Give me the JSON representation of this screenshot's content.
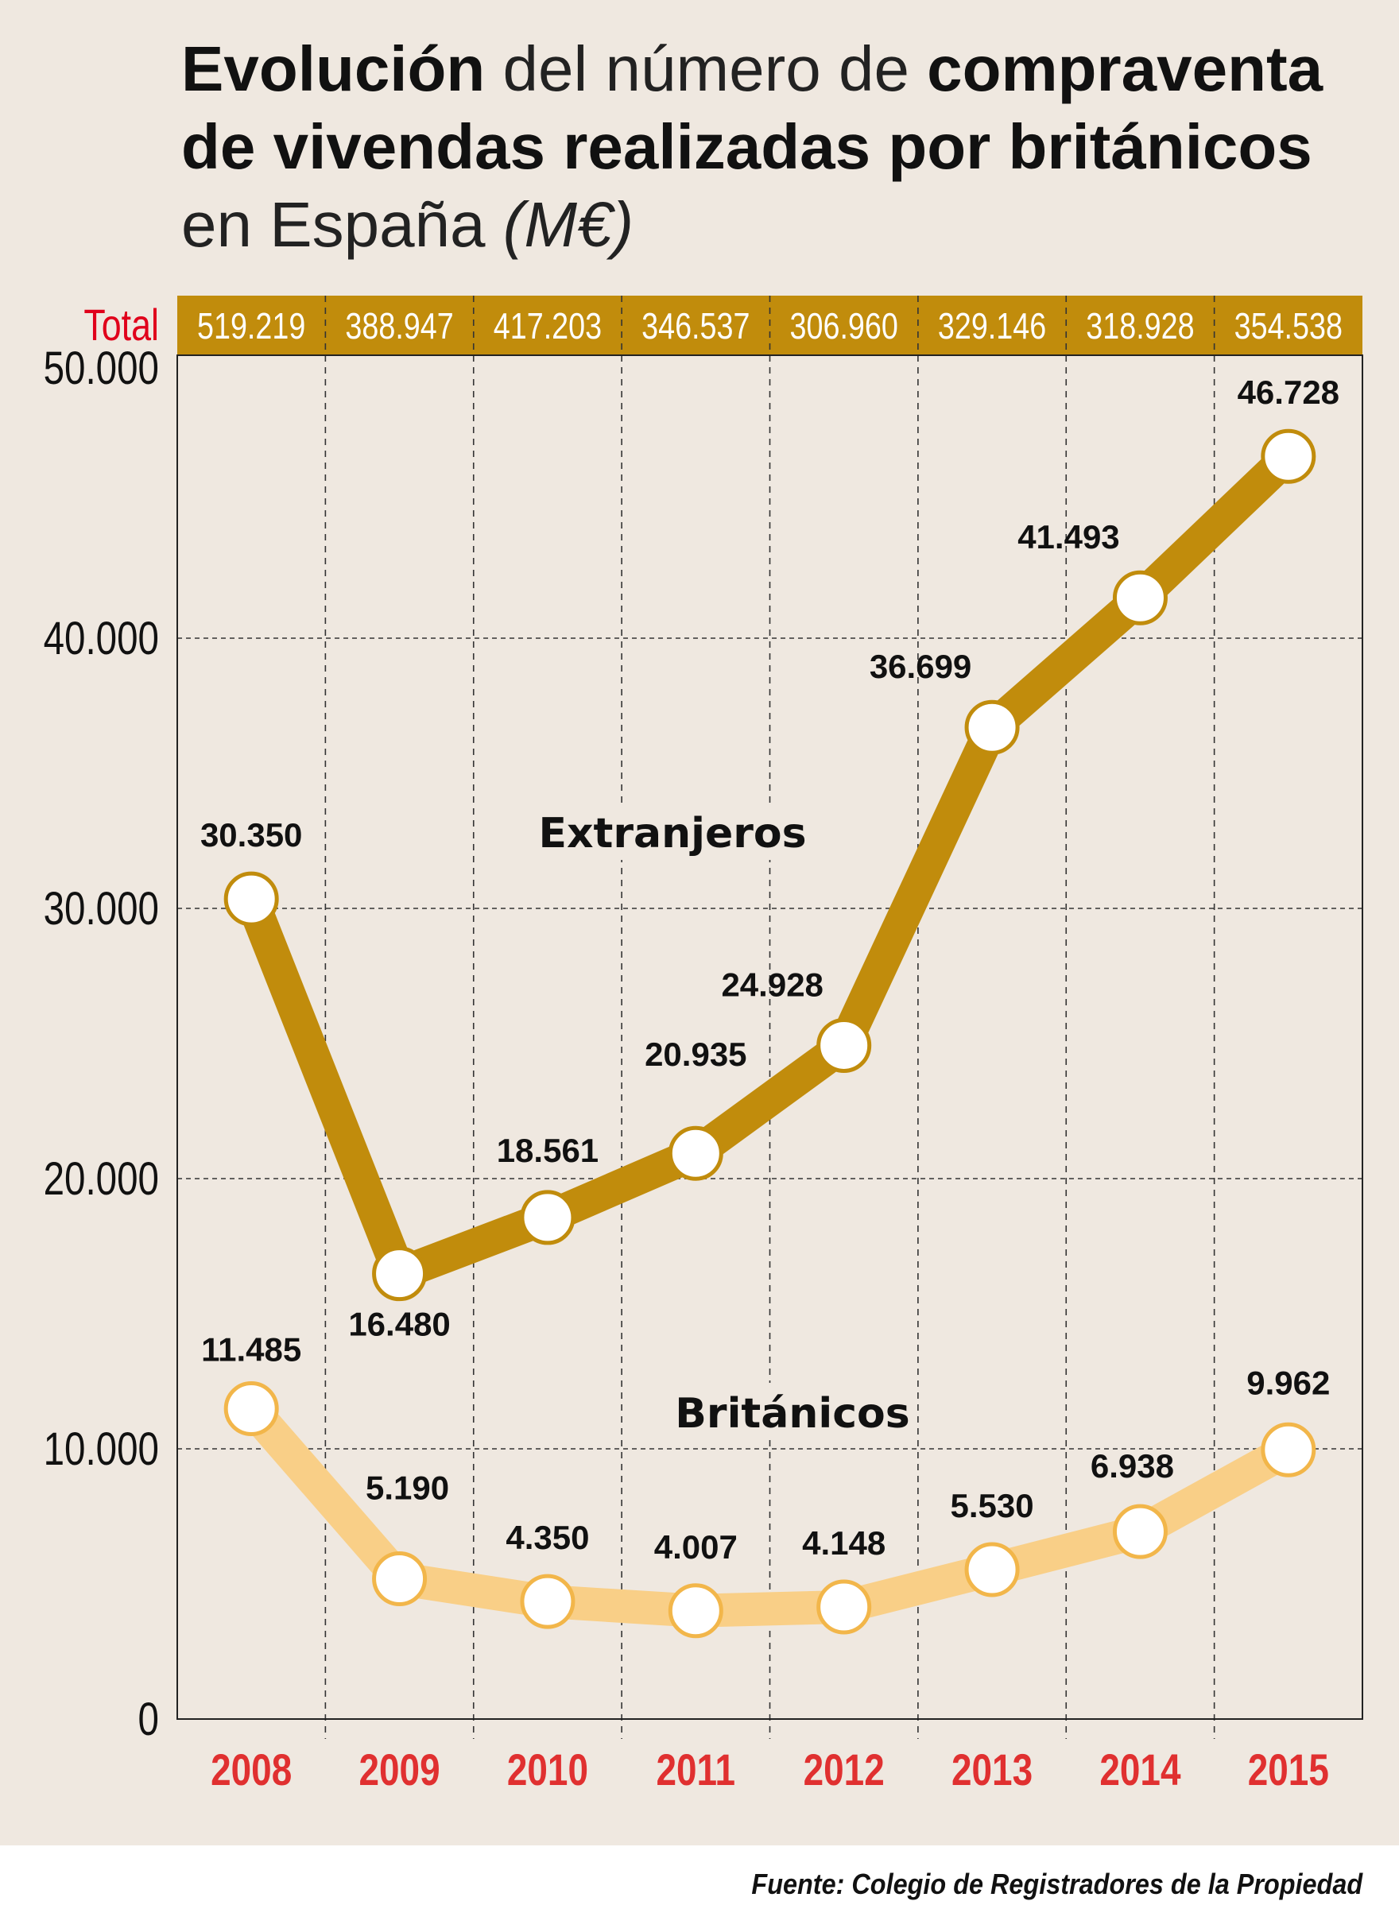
{
  "title": {
    "line1_bold_a": "Evolución",
    "line1_regular": " del número de ",
    "line1_bold_b": "compraventa",
    "line2_bold": "de vivendas realizadas por británicos",
    "line3_regular": "en España ",
    "line3_italic": "(M€)"
  },
  "source": "Fuente: Colegio de Registradores de la Propiedad",
  "colors": {
    "extranjeros": "#c18c0c",
    "britanicos": "#f9cf87",
    "band": "#c18c0c",
    "total_label": "#e0001b",
    "year_label": "#e03030",
    "background": "#efe8e0"
  },
  "chart_data": {
    "type": "line",
    "categories": [
      "2008",
      "2009",
      "2010",
      "2011",
      "2012",
      "2013",
      "2014",
      "2015"
    ],
    "series": [
      {
        "name": "Extranjeros",
        "values": [
          30350,
          16480,
          18561,
          20935,
          24928,
          36699,
          41493,
          46728
        ],
        "labels": [
          "30.350",
          "16.480",
          "18.561",
          "20.935",
          "24.928",
          "36.699",
          "41.493",
          "46.728"
        ]
      },
      {
        "name": "Británicos",
        "values": [
          11485,
          5190,
          4350,
          4007,
          4148,
          5530,
          6938,
          9962
        ],
        "labels": [
          "11.485",
          "5.190",
          "4.350",
          "4.007",
          "4.148",
          "5.530",
          "6.938",
          "9.962"
        ]
      }
    ],
    "totals_label": "Total",
    "totals": [
      "519.219",
      "388.947",
      "417.203",
      "346.537",
      "306.960",
      "329.146",
      "318.928",
      "354.538"
    ],
    "yticks": [
      0,
      10000,
      20000,
      30000,
      40000,
      50000
    ],
    "ytick_labels": [
      "0",
      "10.000",
      "20.000",
      "30.000",
      "40.000",
      "50.000"
    ],
    "ylim": [
      0,
      50000
    ],
    "grid": true
  }
}
